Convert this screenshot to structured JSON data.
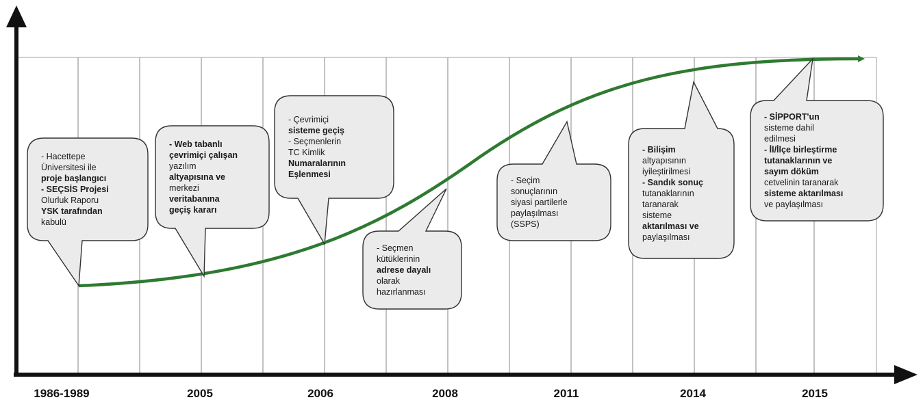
{
  "years": [
    "1986-1989",
    "2005",
    "2006",
    "2008",
    "2011",
    "2014",
    "2015"
  ],
  "colors": {
    "curve": "#2f7a31",
    "axis": "#111111",
    "grid": "#9a9a9a",
    "box_fill": "#ebebeb",
    "box_stroke": "#333333"
  },
  "callouts": [
    {
      "year": "1986-1989",
      "lines": [
        {
          "t": "- Hacettepe",
          "b": false
        },
        {
          "t": "Üniversitesi ile",
          "b": false
        },
        {
          "t": "proje başlangıcı",
          "b": true
        },
        {
          "t": "- SEÇSİS Projesi",
          "b": true
        },
        {
          "t": "Olurluk Raporu",
          "b": false
        },
        {
          "t": "YSK tarafından",
          "b": true
        },
        {
          "t": "kabulü",
          "b": false
        }
      ]
    },
    {
      "year": "2005",
      "lines": [
        {
          "t": "- Web tabanlı",
          "b": true
        },
        {
          "t": "çevrimiçi çalışan",
          "b": true
        },
        {
          "t": "yazılım",
          "b": false
        },
        {
          "t": "altyapısına ve",
          "b": true
        },
        {
          "t": "merkezi",
          "b": false
        },
        {
          "t": "veritabanına",
          "b": true
        },
        {
          "t": "geçiş kararı",
          "b": true
        }
      ]
    },
    {
      "year": "2006",
      "lines": [
        {
          "t": "- Çevrimiçi",
          "b": false
        },
        {
          "t": "sisteme geçiş",
          "b": true
        },
        {
          "t": "- Seçmenlerin",
          "b": false
        },
        {
          "t": "TC Kimlik",
          "b": false
        },
        {
          "t": "Numaralarının",
          "b": true
        },
        {
          "t": "Eşlenmesi",
          "b": true
        }
      ]
    },
    {
      "year": "2008",
      "lines": [
        {
          "t": "- Seçmen",
          "b": false
        },
        {
          "t": "kütüklerinin",
          "b": false
        },
        {
          "t": "adrese dayalı",
          "b": true
        },
        {
          "t": "olarak",
          "b": false
        },
        {
          "t": "hazırlanması",
          "b": false
        }
      ]
    },
    {
      "year": "2011",
      "lines": [
        {
          "t": "- Seçim",
          "b": false
        },
        {
          "t": "sonuçlarının",
          "b": false
        },
        {
          "t": "siyasi partilerle",
          "b": false
        },
        {
          "t": "paylaşılması",
          "b": false
        },
        {
          "t": "(SSPS)",
          "b": false
        }
      ]
    },
    {
      "year": "2014",
      "lines": [
        {
          "t": "- Bilişim",
          "b": true
        },
        {
          "t": "altyapısının",
          "b": false
        },
        {
          "t": "iyileştirilmesi",
          "b": false
        },
        {
          "t": "- Sandık sonuç",
          "b": true
        },
        {
          "t": "tutanaklarının",
          "b": false
        },
        {
          "t": "taranarak",
          "b": false
        },
        {
          "t": "sisteme",
          "b": false
        },
        {
          "t": "aktarılması ve",
          "b": true
        },
        {
          "t": "paylaşılması",
          "b": false
        }
      ]
    },
    {
      "year": "2015",
      "lines": [
        {
          "t": "- SİPPORT'un",
          "b": true
        },
        {
          "t": "sisteme dahil",
          "b": false
        },
        {
          "t": "edilmesi",
          "b": false
        },
        {
          "t": "- İl/İlçe birleştirme",
          "b": true
        },
        {
          "t": "tutanaklarının ve",
          "b": true
        },
        {
          "t": "sayım döküm",
          "b": true
        },
        {
          "t": "cetvelinin taranarak",
          "b": false
        },
        {
          "t": "sisteme aktarılması",
          "b": true
        },
        {
          "t": "ve paylaşılması",
          "b": false
        }
      ]
    }
  ]
}
